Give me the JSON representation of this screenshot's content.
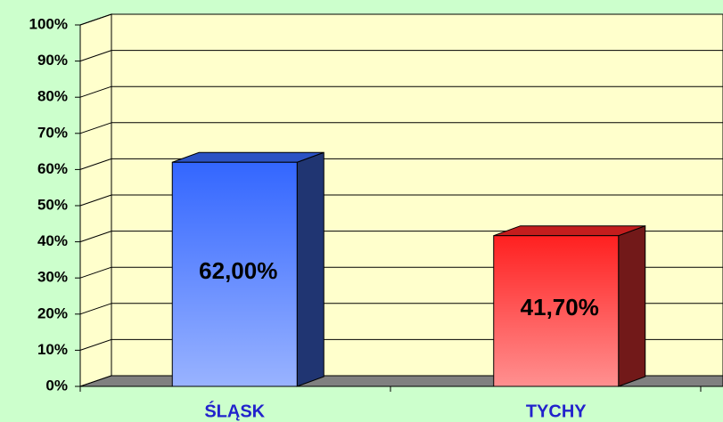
{
  "chart_data": {
    "type": "bar3d",
    "categories": [
      "ŚLĄSK",
      "TYCHY"
    ],
    "values": [
      62.0,
      41.7
    ],
    "value_labels": [
      "62,00%",
      "41,70%"
    ],
    "colors": [
      "#3366ff",
      "#ff2020"
    ],
    "ylim": [
      0,
      100
    ],
    "yticks": [
      {
        "value": 0,
        "label": "0%"
      },
      {
        "value": 10,
        "label": "10%"
      },
      {
        "value": 20,
        "label": "20%"
      },
      {
        "value": 30,
        "label": "30%"
      },
      {
        "value": 40,
        "label": "40%"
      },
      {
        "value": 50,
        "label": "50%"
      },
      {
        "value": 60,
        "label": "60%"
      },
      {
        "value": 70,
        "label": "70%"
      },
      {
        "value": 80,
        "label": "80%"
      },
      {
        "value": 90,
        "label": "90%"
      },
      {
        "value": 100,
        "label": "100%"
      }
    ],
    "grid": true
  }
}
